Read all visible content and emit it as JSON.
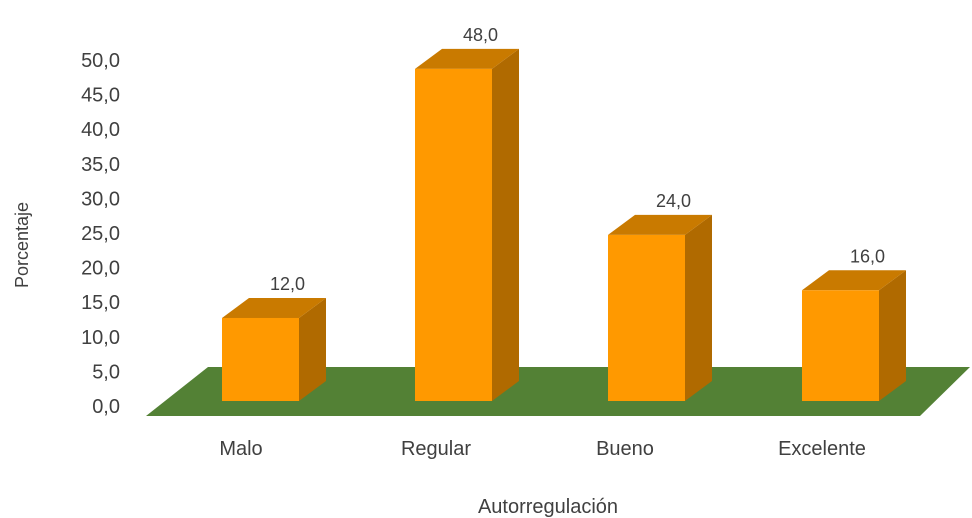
{
  "chart_data": {
    "type": "bar",
    "style": "3d-column",
    "categories": [
      "Malo",
      "Regular",
      "Bueno",
      "Excelente"
    ],
    "values": [
      12.0,
      48.0,
      24.0,
      16.0
    ],
    "data_labels": [
      "12,0",
      "48,0",
      "24,0",
      "16,0"
    ],
    "xlabel": "Autorregulación",
    "ylabel": "Porcentaje",
    "ylim": [
      0,
      50
    ],
    "yticks": [
      "0,0",
      "5,0",
      "10,0",
      "15,0",
      "20,0",
      "25,0",
      "30,0",
      "35,0",
      "40,0",
      "45,0",
      "50,0"
    ],
    "grid": false,
    "legend": "none",
    "colors": {
      "bar_front": "#FF9900",
      "bar_side": "#B06A00",
      "bar_top": "#C97A00",
      "floor": "#538135"
    }
  }
}
